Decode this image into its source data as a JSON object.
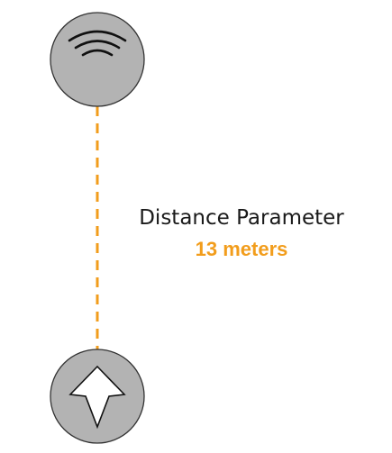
{
  "distance": {
    "title": "Distance Parameter",
    "value": "13 meters"
  },
  "icons": {
    "top": "wireless-signal-icon",
    "bottom": "navigation-arrow-icon"
  },
  "colors": {
    "accent": "#f29d1c",
    "node_fill": "#b3b3b3",
    "node_stroke": "#333333",
    "text": "#1a1a1a"
  }
}
